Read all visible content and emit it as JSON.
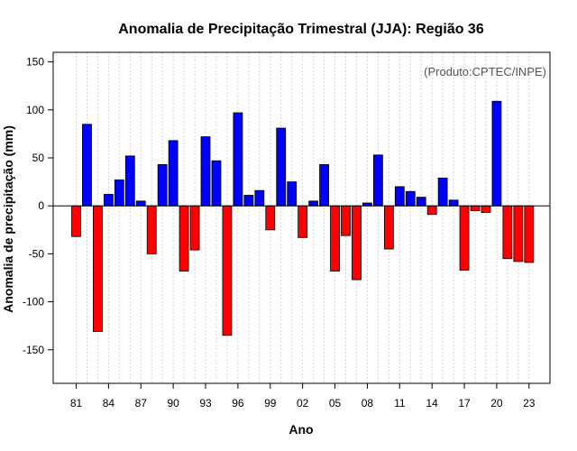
{
  "chart_data": {
    "type": "bar",
    "title": "Anomalia de Precipitação Trimestral (JJA): Região 36",
    "xlabel": "Ano",
    "ylabel": "Anomalia de precipitação (mm)",
    "credit": "(Produto:CPTEC/INPE)",
    "ylim": [
      -185,
      160
    ],
    "yticks": [
      -150,
      -100,
      -50,
      0,
      50,
      100,
      150
    ],
    "xtick_labels": [
      "81",
      "84",
      "87",
      "90",
      "93",
      "96",
      "99",
      "02",
      "05",
      "08",
      "11",
      "14",
      "17",
      "20",
      "23"
    ],
    "categories": [
      "1981",
      "1982",
      "1983",
      "1984",
      "1985",
      "1986",
      "1987",
      "1988",
      "1989",
      "1990",
      "1991",
      "1992",
      "1993",
      "1994",
      "1995",
      "1996",
      "1997",
      "1998",
      "1999",
      "2000",
      "2001",
      "2002",
      "2003",
      "2004",
      "2005",
      "2006",
      "2007",
      "2008",
      "2009",
      "2010",
      "2011",
      "2012",
      "2013",
      "2014",
      "2015",
      "2016",
      "2017",
      "2018",
      "2019",
      "2020",
      "2021",
      "2022",
      "2023"
    ],
    "values": [
      -32,
      85,
      -131,
      12,
      27,
      52,
      5,
      -50,
      43,
      68,
      -68,
      -46,
      72,
      47,
      -135,
      97,
      11,
      16,
      -25,
      81,
      25,
      -33,
      5,
      43,
      -68,
      -31,
      -77,
      3,
      53,
      -45,
      20,
      15,
      9,
      -9,
      29,
      6,
      -67,
      -5,
      -7,
      109,
      -55,
      -58,
      -59
    ],
    "colors": {
      "positive": "#0000ff",
      "negative": "#ff0000",
      "grid": "#d3d3d3",
      "frame": "#000000",
      "zero_line": "#000000"
    },
    "grid": true
  }
}
